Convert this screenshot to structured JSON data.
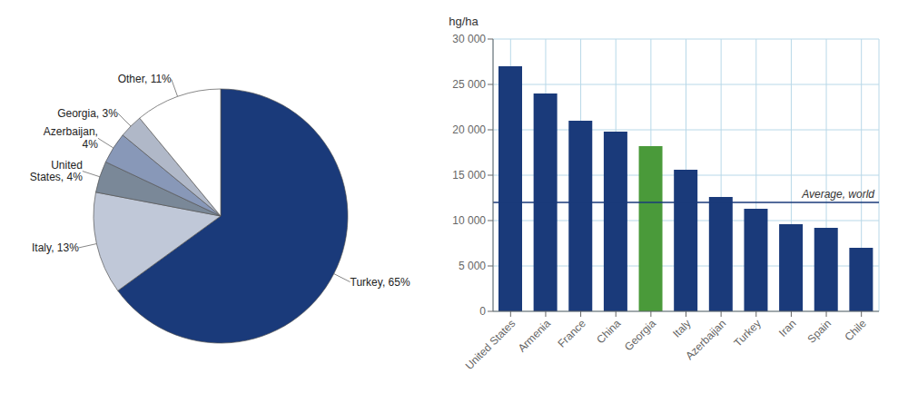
{
  "chart_data": [
    {
      "type": "pie",
      "categories": [
        "Turkey, 65%",
        "Italy, 13%",
        "United\nStates, 4%",
        "Azerbaijan,\n4%",
        "Georgia, 3%",
        "Other, 11%"
      ],
      "values": [
        65,
        13,
        4,
        4,
        3,
        11
      ],
      "colors": [
        "#1a3a7a",
        "#c0c8d8",
        "#7a8898",
        "#8898b8",
        "#b0b8c8",
        "#ffffff"
      ]
    },
    {
      "type": "bar",
      "categories": [
        "United States",
        "Armenia",
        "France",
        "China",
        "Georgia",
        "Italy",
        "Azerbaijan",
        "Turkey",
        "Iran",
        "Spain",
        "Chile"
      ],
      "values": [
        27000,
        24000,
        21000,
        19800,
        18200,
        15600,
        12600,
        11300,
        9600,
        9200,
        7000
      ],
      "colors": [
        "#1a3a7a",
        "#1a3a7a",
        "#1a3a7a",
        "#1a3a7a",
        "#4a9a3a",
        "#1a3a7a",
        "#1a3a7a",
        "#1a3a7a",
        "#1a3a7a",
        "#1a3a7a",
        "#1a3a7a"
      ],
      "ylabel": "hg/ha",
      "ylim": [
        0,
        30000
      ],
      "yticks": [
        0,
        {
          "value": 5000,
          "label": "5 000"
        },
        {
          "value": 10000,
          "label": "10 000"
        },
        {
          "value": 15000,
          "label": "15 000"
        },
        {
          "value": 20000,
          "label": "20 000"
        },
        {
          "value": 25000,
          "label": "25 000"
        },
        {
          "value": 30000,
          "label": "30 000"
        }
      ],
      "reference_lines": [
        {
          "value": 12000,
          "label": "Average, world",
          "color": "#1a3a7a"
        }
      ],
      "grid": true
    }
  ]
}
